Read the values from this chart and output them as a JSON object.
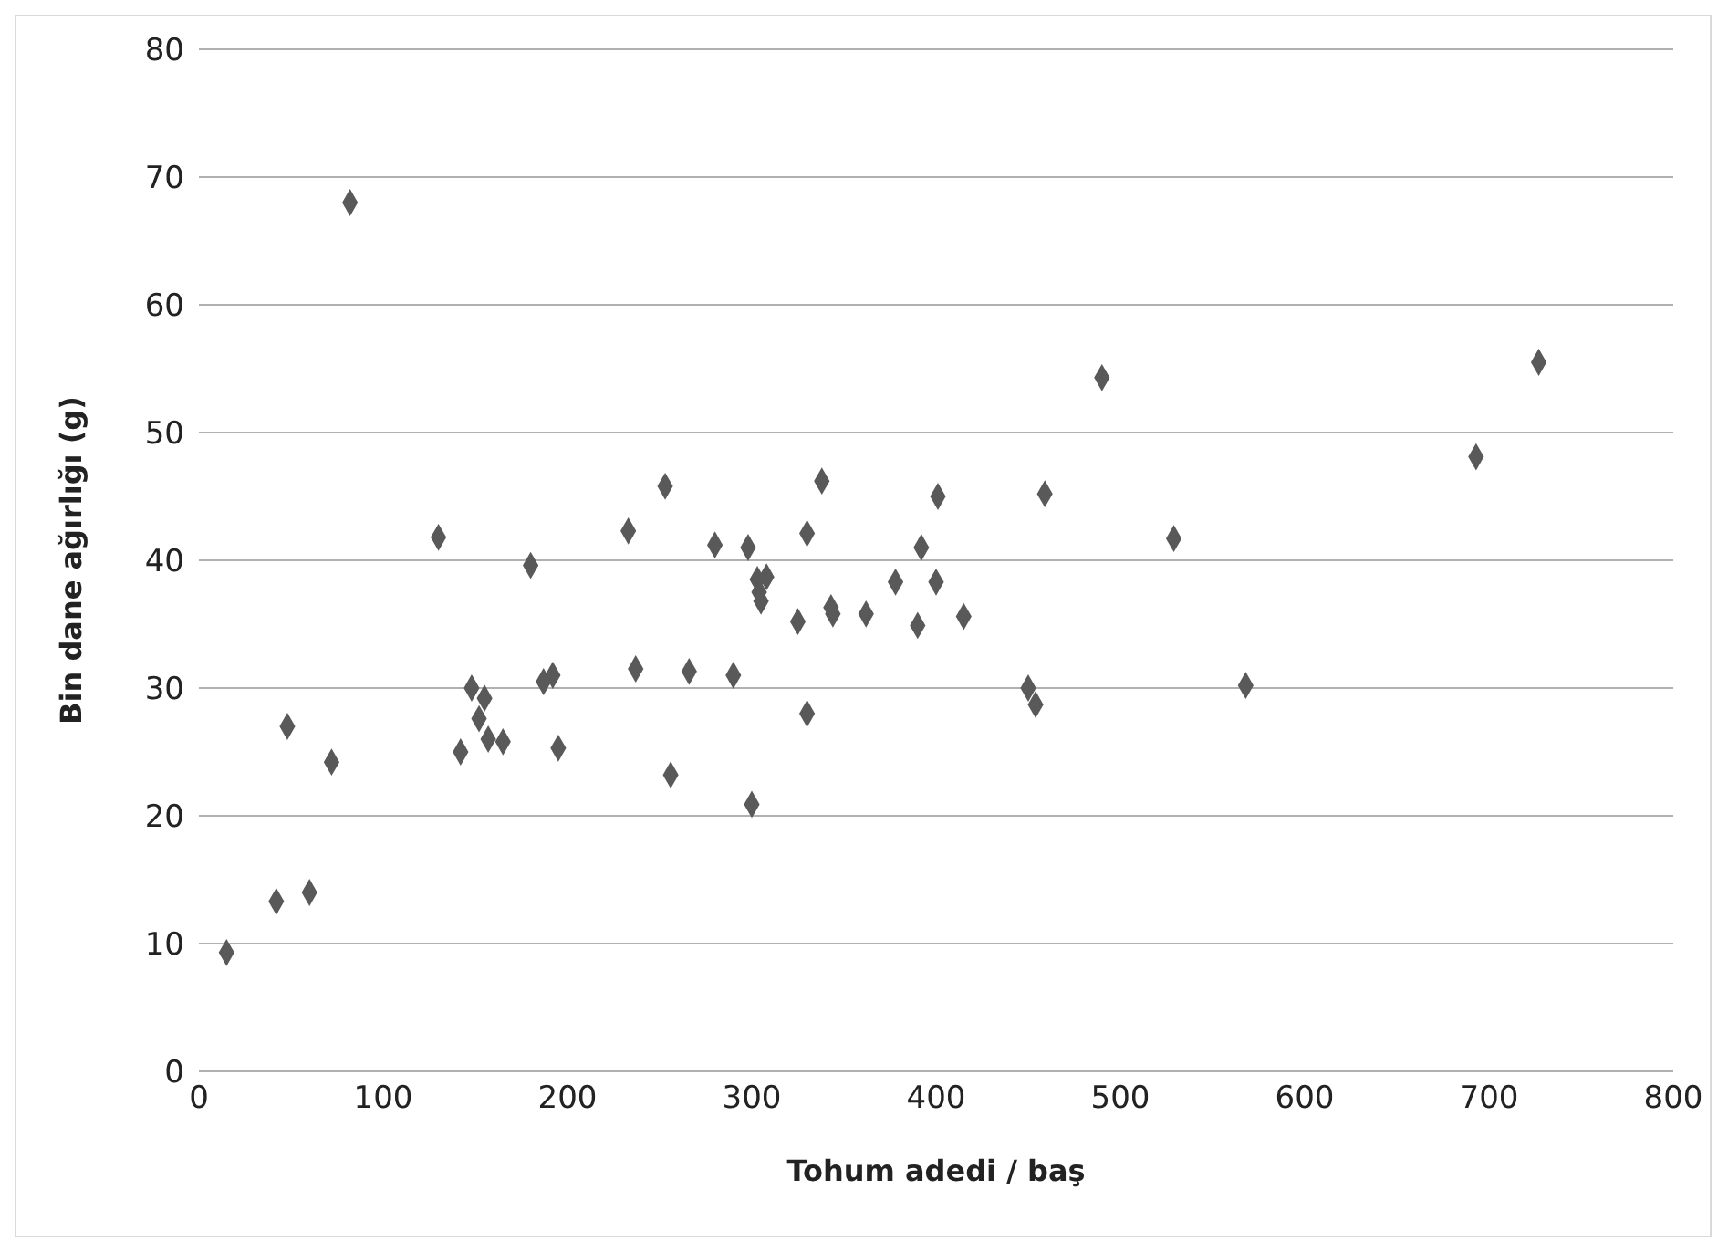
{
  "chart_data": {
    "type": "scatter",
    "xlabel": "Tohum adedi / baş",
    "ylabel": "Bin dane ağırlığı (g)",
    "x": [
      15,
      42,
      60,
      48,
      72,
      82,
      130,
      142,
      148,
      152,
      155,
      157,
      165,
      180,
      187,
      192,
      195,
      233,
      237,
      253,
      256,
      266,
      280,
      290,
      298,
      300,
      303,
      304,
      305,
      308,
      325,
      330,
      330,
      338,
      343,
      344,
      362,
      378,
      390,
      392,
      400,
      401,
      415,
      450,
      454,
      459,
      490,
      529,
      568,
      693,
      727
    ],
    "series": [
      {
        "color": "#595959",
        "values": [
          9.3,
          13.3,
          14,
          27,
          24.2,
          68,
          41.8,
          25,
          30,
          27.6,
          29.2,
          26,
          25.8,
          39.6,
          30.5,
          31,
          25.3,
          42.3,
          31.5,
          45.8,
          23.2,
          31.3,
          41.2,
          31,
          41,
          20.9,
          38.5,
          37.5,
          36.8,
          38.7,
          35.2,
          42.1,
          28,
          46.2,
          36.3,
          35.8,
          35.8,
          38.3,
          34.9,
          41,
          38.3,
          45,
          35.6,
          30,
          28.7,
          45.2,
          54.3,
          41.7,
          30.2,
          48.1,
          55.5
        ]
      }
    ],
    "xlim": [
      0,
      800
    ],
    "xticks": [
      0,
      100,
      200,
      300,
      400,
      500,
      600,
      700,
      800
    ],
    "ylim": [
      0,
      80
    ],
    "yticks": [
      0,
      10,
      20,
      30,
      40,
      50,
      60,
      70,
      80
    ],
    "grid": "y",
    "marker": "diamond"
  }
}
